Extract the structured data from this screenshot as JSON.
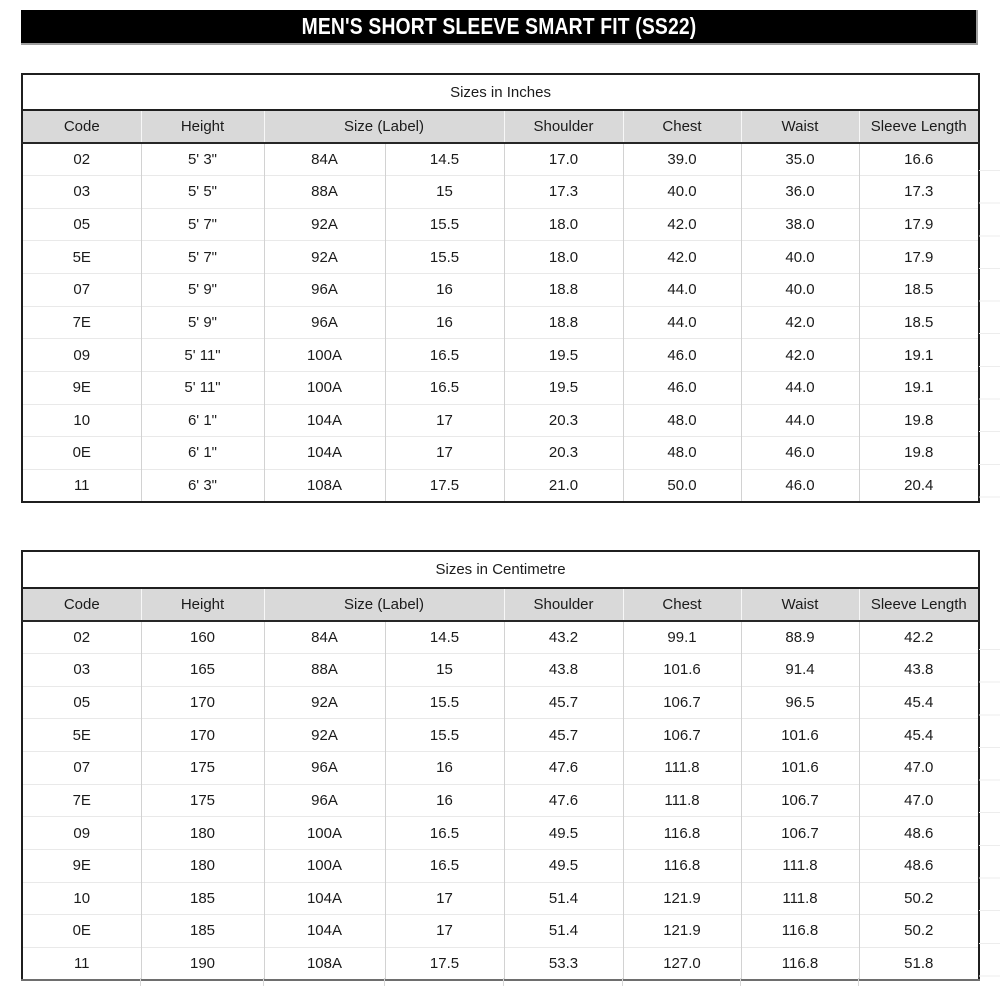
{
  "page_title": "MEN'S SHORT SLEEVE SMART FIT (SS22)",
  "colors": {
    "banner_bg": "#000000",
    "banner_text": "#ffffff",
    "header_fill": "#d9d9d9",
    "border_dark": "#1f1f1f",
    "gridline": "#d2d2d2"
  },
  "tables": [
    {
      "title": "Sizes in Inches",
      "columns": [
        {
          "label": "Code",
          "span": 1
        },
        {
          "label": "Height",
          "span": 1
        },
        {
          "label": "Size (Label)",
          "span": 2
        },
        {
          "label": "Shoulder",
          "span": 1
        },
        {
          "label": "Chest",
          "span": 1
        },
        {
          "label": "Waist",
          "span": 1
        },
        {
          "label": "Sleeve Length",
          "span": 1
        }
      ],
      "rows": [
        [
          "02",
          "5' 3\"",
          "84A",
          "14.5",
          "17.0",
          "39.0",
          "35.0",
          "16.6"
        ],
        [
          "03",
          "5' 5\"",
          "88A",
          "15",
          "17.3",
          "40.0",
          "36.0",
          "17.3"
        ],
        [
          "05",
          "5' 7\"",
          "92A",
          "15.5",
          "18.0",
          "42.0",
          "38.0",
          "17.9"
        ],
        [
          "5E",
          "5' 7\"",
          "92A",
          "15.5",
          "18.0",
          "42.0",
          "40.0",
          "17.9"
        ],
        [
          "07",
          "5' 9\"",
          "96A",
          "16",
          "18.8",
          "44.0",
          "40.0",
          "18.5"
        ],
        [
          "7E",
          "5' 9\"",
          "96A",
          "16",
          "18.8",
          "44.0",
          "42.0",
          "18.5"
        ],
        [
          "09",
          "5' 11\"",
          "100A",
          "16.5",
          "19.5",
          "46.0",
          "42.0",
          "19.1"
        ],
        [
          "9E",
          "5' 11\"",
          "100A",
          "16.5",
          "19.5",
          "46.0",
          "44.0",
          "19.1"
        ],
        [
          "10",
          "6' 1\"",
          "104A",
          "17",
          "20.3",
          "48.0",
          "44.0",
          "19.8"
        ],
        [
          "0E",
          "6' 1\"",
          "104A",
          "17",
          "20.3",
          "48.0",
          "46.0",
          "19.8"
        ],
        [
          "11",
          "6' 3\"",
          "108A",
          "17.5",
          "21.0",
          "50.0",
          "46.0",
          "20.4"
        ]
      ]
    },
    {
      "title": "Sizes in Centimetre",
      "columns": [
        {
          "label": "Code",
          "span": 1
        },
        {
          "label": "Height",
          "span": 1
        },
        {
          "label": "Size (Label)",
          "span": 2
        },
        {
          "label": "Shoulder",
          "span": 1
        },
        {
          "label": "Chest",
          "span": 1
        },
        {
          "label": "Waist",
          "span": 1
        },
        {
          "label": "Sleeve Length",
          "span": 1
        }
      ],
      "rows": [
        [
          "02",
          "160",
          "84A",
          "14.5",
          "43.2",
          "99.1",
          "88.9",
          "42.2"
        ],
        [
          "03",
          "165",
          "88A",
          "15",
          "43.8",
          "101.6",
          "91.4",
          "43.8"
        ],
        [
          "05",
          "170",
          "92A",
          "15.5",
          "45.7",
          "106.7",
          "96.5",
          "45.4"
        ],
        [
          "5E",
          "170",
          "92A",
          "15.5",
          "45.7",
          "106.7",
          "101.6",
          "45.4"
        ],
        [
          "07",
          "175",
          "96A",
          "16",
          "47.6",
          "111.8",
          "101.6",
          "47.0"
        ],
        [
          "7E",
          "175",
          "96A",
          "16",
          "47.6",
          "111.8",
          "106.7",
          "47.0"
        ],
        [
          "09",
          "180",
          "100A",
          "16.5",
          "49.5",
          "116.8",
          "106.7",
          "48.6"
        ],
        [
          "9E",
          "180",
          "100A",
          "16.5",
          "49.5",
          "116.8",
          "111.8",
          "48.6"
        ],
        [
          "10",
          "185",
          "104A",
          "17",
          "51.4",
          "121.9",
          "111.8",
          "50.2"
        ],
        [
          "0E",
          "185",
          "104A",
          "17",
          "51.4",
          "121.9",
          "116.8",
          "50.2"
        ],
        [
          "11",
          "190",
          "108A",
          "17.5",
          "53.3",
          "127.0",
          "116.8",
          "51.8"
        ]
      ]
    }
  ]
}
